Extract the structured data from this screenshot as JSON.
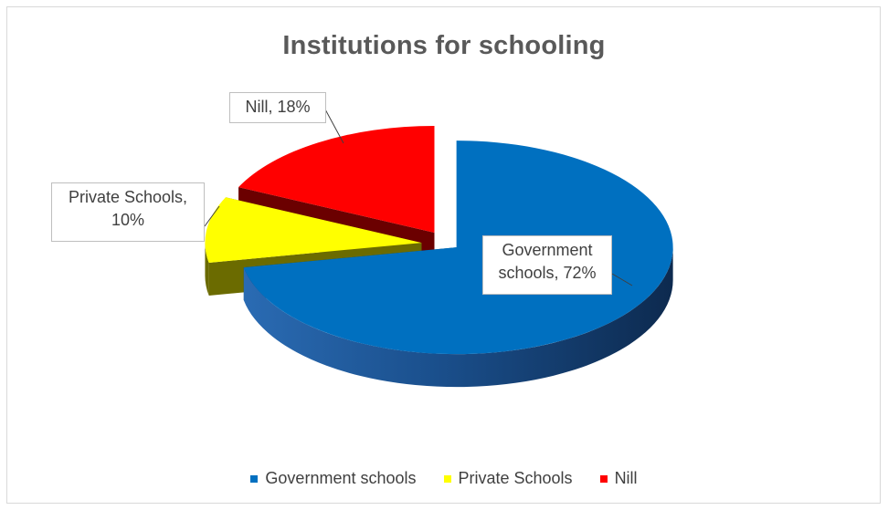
{
  "chart_data": {
    "type": "pie",
    "title": "Institutions for schooling",
    "style": "3d-exploded",
    "legend_position": "bottom",
    "slices": [
      {
        "label": "Government schools",
        "value": 72,
        "display": "72%",
        "color": "#0070c0",
        "callout_text": [
          "Government",
          "schools, 72%"
        ]
      },
      {
        "label": "Private Schools",
        "value": 10,
        "display": "10%",
        "color": "#ffff00",
        "callout_text": [
          "Private Schools,",
          "10%"
        ]
      },
      {
        "label": "Nill",
        "value": 18,
        "display": "18%",
        "color": "#ff0000",
        "callout_text": [
          "Nill, 18%"
        ]
      }
    ]
  }
}
